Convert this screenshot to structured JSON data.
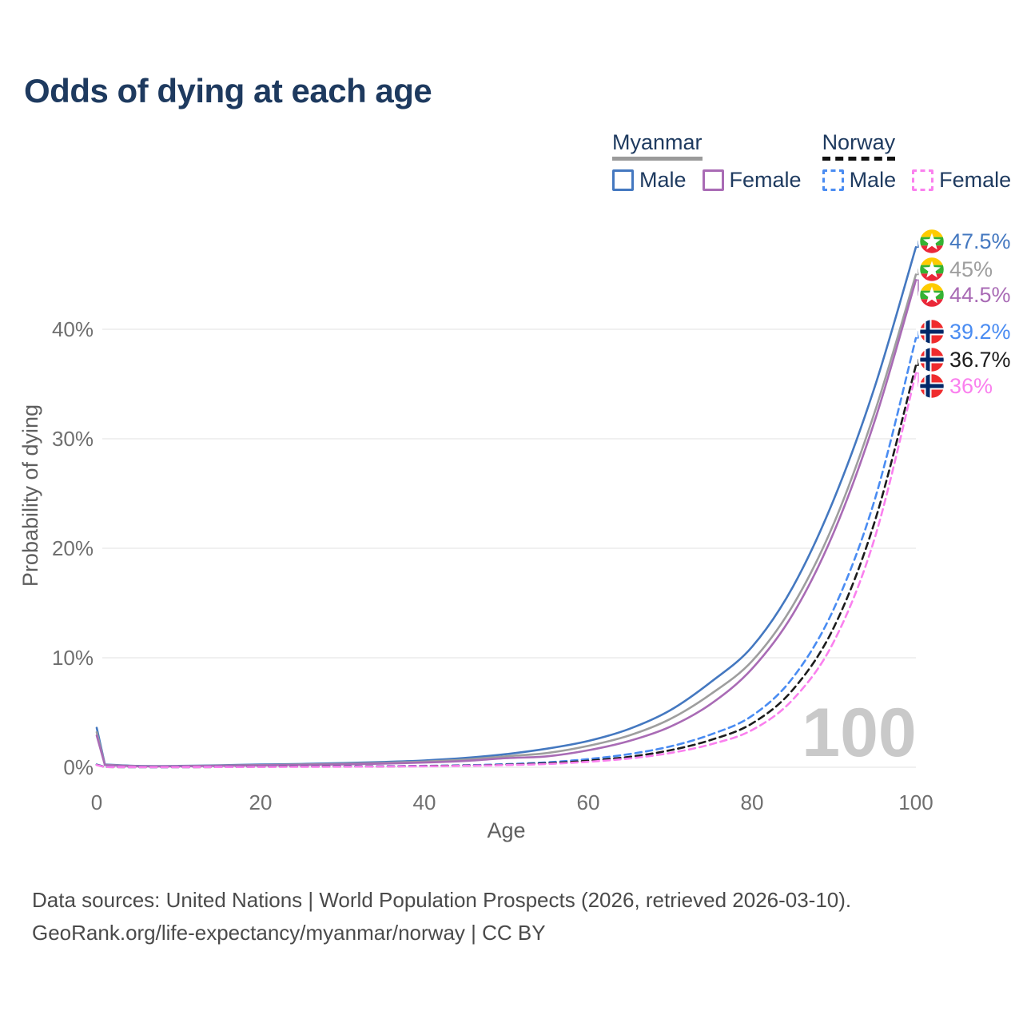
{
  "header": {
    "title": "Odds of dying at each age"
  },
  "legend": {
    "groups": [
      {
        "name": "Myanmar",
        "underline_style": "solid",
        "underline_color": "#9a9a9a",
        "items": [
          {
            "label": "Male",
            "box_color": "#4478c0",
            "box_style": "solid"
          },
          {
            "label": "Female",
            "box_color": "#a96bb5",
            "box_style": "solid"
          }
        ]
      },
      {
        "name": "Norway",
        "underline_style": "dashed",
        "underline_color": "#111111",
        "items": [
          {
            "label": "Male",
            "box_color": "#4a8cf2",
            "box_style": "dashed"
          },
          {
            "label": "Female",
            "box_color": "#fa80ee",
            "box_style": "dashed"
          }
        ]
      }
    ]
  },
  "chart_data": {
    "type": "line",
    "title": "Odds of dying at each age",
    "xlabel": "Age",
    "ylabel": "Probability of dying",
    "xlim": [
      0,
      100
    ],
    "ylim": [
      0,
      48.5
    ],
    "x_ticks": [
      0,
      20,
      40,
      60,
      80,
      100
    ],
    "y_ticks": [
      {
        "value": 0,
        "label": "0%"
      },
      {
        "value": 10,
        "label": "10%"
      },
      {
        "value": 20,
        "label": "20%"
      },
      {
        "value": 30,
        "label": "30%"
      },
      {
        "value": 40,
        "label": "40%"
      }
    ],
    "grid": "horizontal",
    "legend_position": "top-right",
    "watermark": "100",
    "ages": [
      0,
      1,
      5,
      10,
      15,
      20,
      25,
      30,
      35,
      40,
      45,
      50,
      55,
      60,
      65,
      70,
      75,
      80,
      85,
      90,
      95,
      100
    ],
    "series": [
      {
        "name": "Myanmar Male",
        "country": "myanmar",
        "sex": "male",
        "color": "#4478c0",
        "dash": false,
        "end_label": "47.5%",
        "end_value": 47.5,
        "values": [
          3.6,
          0.25,
          0.12,
          0.12,
          0.18,
          0.25,
          0.3,
          0.38,
          0.48,
          0.62,
          0.85,
          1.2,
          1.7,
          2.4,
          3.5,
          5.2,
          7.8,
          11.0,
          16.5,
          24.5,
          34.8,
          47.5
        ]
      },
      {
        "name": "Myanmar Both sexes",
        "country": "myanmar",
        "sex": "both",
        "color": "#9e9e9e",
        "dash": false,
        "end_label": "45%",
        "end_value": 45,
        "values": [
          3.2,
          0.22,
          0.1,
          0.1,
          0.15,
          0.2,
          0.25,
          0.31,
          0.4,
          0.52,
          0.7,
          1.0,
          1.3,
          1.95,
          2.9,
          4.4,
          6.7,
          9.7,
          14.8,
          22.3,
          32.5,
          45.0
        ]
      },
      {
        "name": "Myanmar Female",
        "country": "myanmar",
        "sex": "female",
        "color": "#a96bb5",
        "dash": false,
        "end_label": "44.5%",
        "end_value": 44.5,
        "values": [
          2.9,
          0.2,
          0.09,
          0.09,
          0.13,
          0.17,
          0.21,
          0.26,
          0.33,
          0.43,
          0.58,
          0.83,
          1.0,
          1.55,
          2.4,
          3.7,
          5.8,
          9.0,
          14.0,
          21.5,
          31.7,
          44.5
        ]
      },
      {
        "name": "Norway Male",
        "country": "norway",
        "sex": "male",
        "color": "#4a8cf2",
        "dash": true,
        "end_label": "39.2%",
        "end_value": 39.2,
        "values": [
          0.25,
          0.03,
          0.01,
          0.01,
          0.03,
          0.06,
          0.07,
          0.08,
          0.1,
          0.13,
          0.18,
          0.28,
          0.45,
          0.75,
          1.2,
          1.9,
          3.0,
          4.7,
          8.2,
          14.5,
          24.5,
          39.2
        ]
      },
      {
        "name": "Norway Both sexes",
        "country": "norway",
        "sex": "both",
        "color": "#1c1c1c",
        "dash": true,
        "end_label": "36.7%",
        "end_value": 36.7,
        "values": [
          0.22,
          0.02,
          0.01,
          0.01,
          0.02,
          0.05,
          0.06,
          0.07,
          0.08,
          0.11,
          0.15,
          0.23,
          0.37,
          0.6,
          0.95,
          1.55,
          2.5,
          4.0,
          7.1,
          12.8,
          22.5,
          36.7
        ]
      },
      {
        "name": "Norway Female",
        "country": "norway",
        "sex": "female",
        "color": "#fa80ee",
        "dash": true,
        "end_label": "36%",
        "end_value": 36,
        "values": [
          0.2,
          0.02,
          0.01,
          0.01,
          0.02,
          0.03,
          0.04,
          0.05,
          0.07,
          0.09,
          0.13,
          0.2,
          0.3,
          0.5,
          0.8,
          1.3,
          2.1,
          3.4,
          6.2,
          11.5,
          21.0,
          36.0
        ]
      }
    ],
    "flag_colors": {
      "myanmar_yellow": "#FECB00",
      "myanmar_green": "#34B233",
      "myanmar_red": "#EA2839",
      "norway_red": "#EF2B2D",
      "norway_blue": "#002868",
      "norway_white": "#ffffff"
    }
  },
  "footer": {
    "line1": "Data sources: United Nations | World Population Prospects (2026, retrieved 2026-03-10).",
    "line2": "GeoRank.org/life-expectancy/myanmar/norway | CC BY"
  }
}
